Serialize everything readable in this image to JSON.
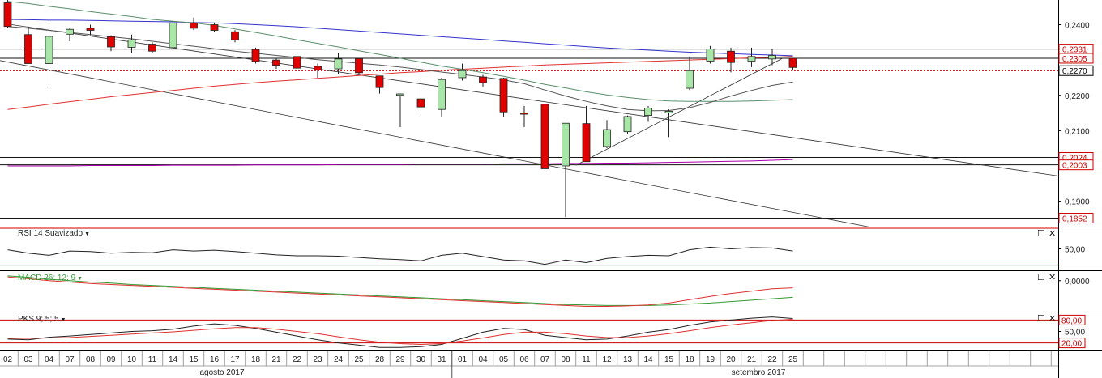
{
  "chart_data": {
    "type": "candlestick",
    "price_axis": {
      "ylim": [
        0.1828,
        0.247
      ],
      "tick_labels": [
        "0,2400",
        "0,2200",
        "0,2100",
        "0,1900"
      ],
      "tick_values": [
        0.24,
        0.22,
        0.21,
        0.19
      ],
      "levels": [
        {
          "label": "0,2331",
          "value": 0.2331,
          "style": "black-line",
          "badge": "#cc0000"
        },
        {
          "label": "0,2305",
          "value": 0.2305,
          "style": "black-line",
          "badge": "#cc0000"
        },
        {
          "label": "0,2270",
          "value": 0.227,
          "style": "red-dotted",
          "badge": "#000000"
        },
        {
          "label": "0,2024",
          "value": 0.2024,
          "style": "black-line",
          "badge": "#cc0000"
        },
        {
          "label": "0,2003",
          "value": 0.2003,
          "style": "black-line",
          "badge": "#cc0000"
        },
        {
          "label": "0,1852",
          "value": 0.1852,
          "style": "black-line",
          "badge": "#cc0000"
        }
      ]
    },
    "x_axis": {
      "day_labels": [
        "02",
        "03",
        "04",
        "07",
        "08",
        "09",
        "10",
        "11",
        "14",
        "15",
        "16",
        "17",
        "18",
        "21",
        "22",
        "23",
        "24",
        "25",
        "28",
        "29",
        "30",
        "31",
        "01",
        "04",
        "05",
        "06",
        "07",
        "08",
        "11",
        "12",
        "13",
        "14",
        "15",
        "18",
        "19",
        "20",
        "21",
        "22",
        "25"
      ],
      "month_labels": [
        "agosto 2017",
        "setembro 2017"
      ]
    },
    "candles": [
      {
        "o": 0.2462,
        "h": 0.247,
        "l": 0.239,
        "c": 0.2395
      },
      {
        "o": 0.2372,
        "h": 0.2395,
        "l": 0.229,
        "c": 0.229
      },
      {
        "o": 0.229,
        "h": 0.24,
        "l": 0.2225,
        "c": 0.2367
      },
      {
        "o": 0.2373,
        "h": 0.239,
        "l": 0.2353,
        "c": 0.2387
      },
      {
        "o": 0.239,
        "h": 0.24,
        "l": 0.237,
        "c": 0.2384
      },
      {
        "o": 0.2366,
        "h": 0.237,
        "l": 0.2325,
        "c": 0.2337
      },
      {
        "o": 0.2336,
        "h": 0.2372,
        "l": 0.232,
        "c": 0.2357
      },
      {
        "o": 0.2345,
        "h": 0.235,
        "l": 0.232,
        "c": 0.2325
      },
      {
        "o": 0.2335,
        "h": 0.241,
        "l": 0.233,
        "c": 0.2405
      },
      {
        "o": 0.2405,
        "h": 0.242,
        "l": 0.2385,
        "c": 0.239
      },
      {
        "o": 0.24,
        "h": 0.2405,
        "l": 0.238,
        "c": 0.2384
      },
      {
        "o": 0.238,
        "h": 0.2385,
        "l": 0.235,
        "c": 0.2357
      },
      {
        "o": 0.233,
        "h": 0.2335,
        "l": 0.229,
        "c": 0.2296
      },
      {
        "o": 0.23,
        "h": 0.2305,
        "l": 0.2275,
        "c": 0.2285
      },
      {
        "o": 0.231,
        "h": 0.232,
        "l": 0.2272,
        "c": 0.2277
      },
      {
        "o": 0.2282,
        "h": 0.229,
        "l": 0.225,
        "c": 0.2272
      },
      {
        "o": 0.2275,
        "h": 0.232,
        "l": 0.226,
        "c": 0.2303
      },
      {
        "o": 0.2304,
        "h": 0.2306,
        "l": 0.226,
        "c": 0.2264
      },
      {
        "o": 0.2255,
        "h": 0.2255,
        "l": 0.2205,
        "c": 0.2222
      },
      {
        "o": 0.22,
        "h": 0.2205,
        "l": 0.211,
        "c": 0.2204
      },
      {
        "o": 0.219,
        "h": 0.2237,
        "l": 0.215,
        "c": 0.2167
      },
      {
        "o": 0.216,
        "h": 0.225,
        "l": 0.214,
        "c": 0.2245
      },
      {
        "o": 0.225,
        "h": 0.229,
        "l": 0.2242,
        "c": 0.227
      },
      {
        "o": 0.2252,
        "h": 0.2258,
        "l": 0.2225,
        "c": 0.2236
      },
      {
        "o": 0.2248,
        "h": 0.225,
        "l": 0.214,
        "c": 0.2153
      },
      {
        "o": 0.215,
        "h": 0.217,
        "l": 0.211,
        "c": 0.2148
      },
      {
        "o": 0.2175,
        "h": 0.2175,
        "l": 0.198,
        "c": 0.1992
      },
      {
        "o": 0.2,
        "h": 0.2121,
        "l": 0.1855,
        "c": 0.2121
      },
      {
        "o": 0.212,
        "h": 0.217,
        "l": 0.2012,
        "c": 0.2012
      },
      {
        "o": 0.2055,
        "h": 0.213,
        "l": 0.205,
        "c": 0.2103
      },
      {
        "o": 0.2097,
        "h": 0.2143,
        "l": 0.209,
        "c": 0.214
      },
      {
        "o": 0.2143,
        "h": 0.217,
        "l": 0.2125,
        "c": 0.2164
      },
      {
        "o": 0.215,
        "h": 0.216,
        "l": 0.2082,
        "c": 0.2155
      },
      {
        "o": 0.222,
        "h": 0.231,
        "l": 0.2215,
        "c": 0.227
      },
      {
        "o": 0.2297,
        "h": 0.234,
        "l": 0.229,
        "c": 0.2331
      },
      {
        "o": 0.2325,
        "h": 0.2335,
        "l": 0.2265,
        "c": 0.2293
      },
      {
        "o": 0.2297,
        "h": 0.2335,
        "l": 0.228,
        "c": 0.231
      },
      {
        "o": 0.2303,
        "h": 0.2332,
        "l": 0.2285,
        "c": 0.2313
      },
      {
        "o": 0.2305,
        "h": 0.2305,
        "l": 0.227,
        "c": 0.2279
      }
    ],
    "moving_averages": [
      {
        "color": "#3333cc",
        "values": [
          0.2415,
          0.2414,
          0.2413,
          0.2413,
          0.2412,
          0.2411,
          0.241,
          0.2409,
          0.2408,
          0.2406,
          0.2405,
          0.2403,
          0.24,
          0.2397,
          0.2394,
          0.239,
          0.2386,
          0.2382,
          0.2378,
          0.2374,
          0.237,
          0.2366,
          0.2362,
          0.2358,
          0.2354,
          0.235,
          0.2346,
          0.2342,
          0.2338,
          0.2334,
          0.2331,
          0.2328,
          0.2325,
          0.2322,
          0.232,
          0.2318,
          0.2316,
          0.2314,
          0.2312
        ]
      },
      {
        "color": "#e03030",
        "values": [
          0.216,
          0.2167,
          0.2175,
          0.2182,
          0.2189,
          0.2196,
          0.2202,
          0.2208,
          0.2214,
          0.222,
          0.2226,
          0.2231,
          0.2236,
          0.224,
          0.2244,
          0.2248,
          0.2252,
          0.2256,
          0.226,
          0.2264,
          0.2267,
          0.2271,
          0.2274,
          0.2277,
          0.228,
          0.2283,
          0.2286,
          0.2288,
          0.229,
          0.2292,
          0.2294,
          0.2296,
          0.2298,
          0.23,
          0.2302,
          0.2304,
          0.2306,
          0.2308,
          0.231
        ]
      },
      {
        "color": "#5a8f6a",
        "values": [
          0.2466,
          0.246,
          0.2452,
          0.2445,
          0.2437,
          0.243,
          0.2423,
          0.2415,
          0.241,
          0.2405,
          0.2398,
          0.2388,
          0.2378,
          0.2368,
          0.2357,
          0.2347,
          0.2337,
          0.2326,
          0.2316,
          0.2305,
          0.2294,
          0.2283,
          0.2274,
          0.2264,
          0.2254,
          0.2243,
          0.2231,
          0.2221,
          0.221,
          0.2201,
          0.2194,
          0.2188,
          0.2184,
          0.2183,
          0.2183,
          0.2183,
          0.2184,
          0.2186,
          0.2188
        ]
      },
      {
        "color": "#555555",
        "values": [
          0.2395,
          0.239,
          0.2384,
          0.2378,
          0.2372,
          0.2366,
          0.236,
          0.2353,
          0.2346,
          0.2339,
          0.2332,
          0.2325,
          0.2319,
          0.2313,
          0.2307,
          0.2301,
          0.2296,
          0.2291,
          0.2286,
          0.228,
          0.2273,
          0.2266,
          0.2259,
          0.2252,
          0.2244,
          0.2233,
          0.2215,
          0.2198,
          0.2183,
          0.217,
          0.216,
          0.2156,
          0.2157,
          0.2165,
          0.218,
          0.2198,
          0.2214,
          0.2228,
          0.2238
        ]
      },
      {
        "color": "#aa00aa",
        "values": [
          0.2,
          0.2,
          0.2,
          0.2,
          0.2001,
          0.2001,
          0.2001,
          0.2001,
          0.2002,
          0.2002,
          0.2002,
          0.2002,
          0.2003,
          0.2003,
          0.2003,
          0.2003,
          0.2004,
          0.2004,
          0.2004,
          0.2004,
          0.2005,
          0.2005,
          0.2005,
          0.2005,
          0.2006,
          0.2006,
          0.2006,
          0.2007,
          0.2007,
          0.2008,
          0.2008,
          0.2009,
          0.201,
          0.2011,
          0.2012,
          0.2013,
          0.2014,
          0.2016,
          0.2018
        ]
      }
    ],
    "trend_lines": [
      {
        "from": {
          "i": -1.4,
          "v": 0.231
        },
        "to": {
          "i": 42.5,
          "v": 0.1818
        }
      },
      {
        "from": {
          "i": 0.2,
          "v": 0.24
        },
        "to": {
          "i": 51.5,
          "v": 0.1966
        }
      },
      {
        "from": {
          "i": 27.5,
          "v": 0.2002
        },
        "to": {
          "i": 37.5,
          "v": 0.2305
        }
      }
    ],
    "indicators": [
      {
        "label": "RSI 14 Suavizado",
        "ylim": [
          0,
          100
        ],
        "tick_labels": [
          "50,00"
        ],
        "tick_values": [
          50
        ],
        "levels": [
          {
            "value": 100,
            "color": "#cc0000"
          },
          {
            "value": 12,
            "color": "#339933"
          }
        ],
        "series": [
          {
            "color": "#222222",
            "values": [
              48,
              40,
              35,
              45,
              44,
              40,
              42,
              41,
              48,
              45,
              47,
              44,
              40,
              36,
              34,
              34,
              33,
              30,
              27,
              25,
              22,
              35,
              40,
              32,
              24,
              22,
              14,
              24,
              18,
              28,
              32,
              35,
              34,
              48,
              54,
              50,
              53,
              52,
              45
            ]
          }
        ]
      },
      {
        "label": "MACD 26; 12; 9",
        "label_color": "#339933",
        "ylim": [
          -0.0065,
          0.002
        ],
        "tick_labels": [
          "0,0000"
        ],
        "tick_values": [
          0
        ],
        "levels": [],
        "series": [
          {
            "color": "#339933",
            "values": [
              0.001,
              0.0007,
              0.0003,
              0.0,
              -0.0003,
              -0.0005,
              -0.0008,
              -0.001,
              -0.0012,
              -0.0014,
              -0.0016,
              -0.0018,
              -0.002,
              -0.0022,
              -0.0024,
              -0.0026,
              -0.0028,
              -0.003,
              -0.0032,
              -0.0034,
              -0.0036,
              -0.0038,
              -0.004,
              -0.0042,
              -0.0044,
              -0.0046,
              -0.0048,
              -0.005,
              -0.0051,
              -0.0052,
              -0.0052,
              -0.0052,
              -0.0051,
              -0.0049,
              -0.0047,
              -0.0044,
              -0.0041,
              -0.0038,
              -0.0035
            ]
          },
          {
            "color": "#e03030",
            "values": [
              0.0008,
              0.0004,
              0.0,
              -0.0003,
              -0.0006,
              -0.0008,
              -0.001,
              -0.0012,
              -0.0014,
              -0.0016,
              -0.0018,
              -0.002,
              -0.0022,
              -0.0024,
              -0.0026,
              -0.0028,
              -0.003,
              -0.0032,
              -0.0034,
              -0.0036,
              -0.0038,
              -0.004,
              -0.0042,
              -0.0044,
              -0.0046,
              -0.0048,
              -0.005,
              -0.0052,
              -0.0054,
              -0.0054,
              -0.0053,
              -0.0051,
              -0.0047,
              -0.004,
              -0.0033,
              -0.0027,
              -0.0022,
              -0.0017,
              -0.0015
            ]
          }
        ]
      },
      {
        "label": "PKS 9; 5; 5",
        "ylim": [
          0,
          100
        ],
        "tick_labels": [
          "80,00",
          "50,00",
          "20,00"
        ],
        "tick_values": [
          80,
          50,
          20
        ],
        "boxed_ticks": [
          "80,00",
          "20,00"
        ],
        "levels": [
          {
            "value": 80,
            "color": "#cc0000"
          },
          {
            "value": 20,
            "color": "#cc0000"
          }
        ],
        "series": [
          {
            "color": "#222222",
            "values": [
              30,
              28,
              35,
              38,
              42,
              46,
              50,
              52,
              56,
              64,
              70,
              66,
              58,
              48,
              38,
              28,
              20,
              14,
              8,
              8,
              10,
              16,
              32,
              48,
              58,
              55,
              40,
              34,
              28,
              30,
              38,
              48,
              55,
              66,
              75,
              80,
              85,
              88,
              84
            ]
          },
          {
            "color": "#e03030",
            "values": [
              32,
              32,
              33,
              34,
              37,
              40,
              43,
              46,
              49,
              53,
              57,
              60,
              60,
              56,
              50,
              44,
              36,
              28,
              22,
              18,
              16,
              18,
              25,
              33,
              42,
              48,
              48,
              44,
              38,
              34,
              34,
              38,
              44,
              52,
              60,
              67,
              73,
              79,
              82
            ]
          }
        ]
      }
    ]
  }
}
